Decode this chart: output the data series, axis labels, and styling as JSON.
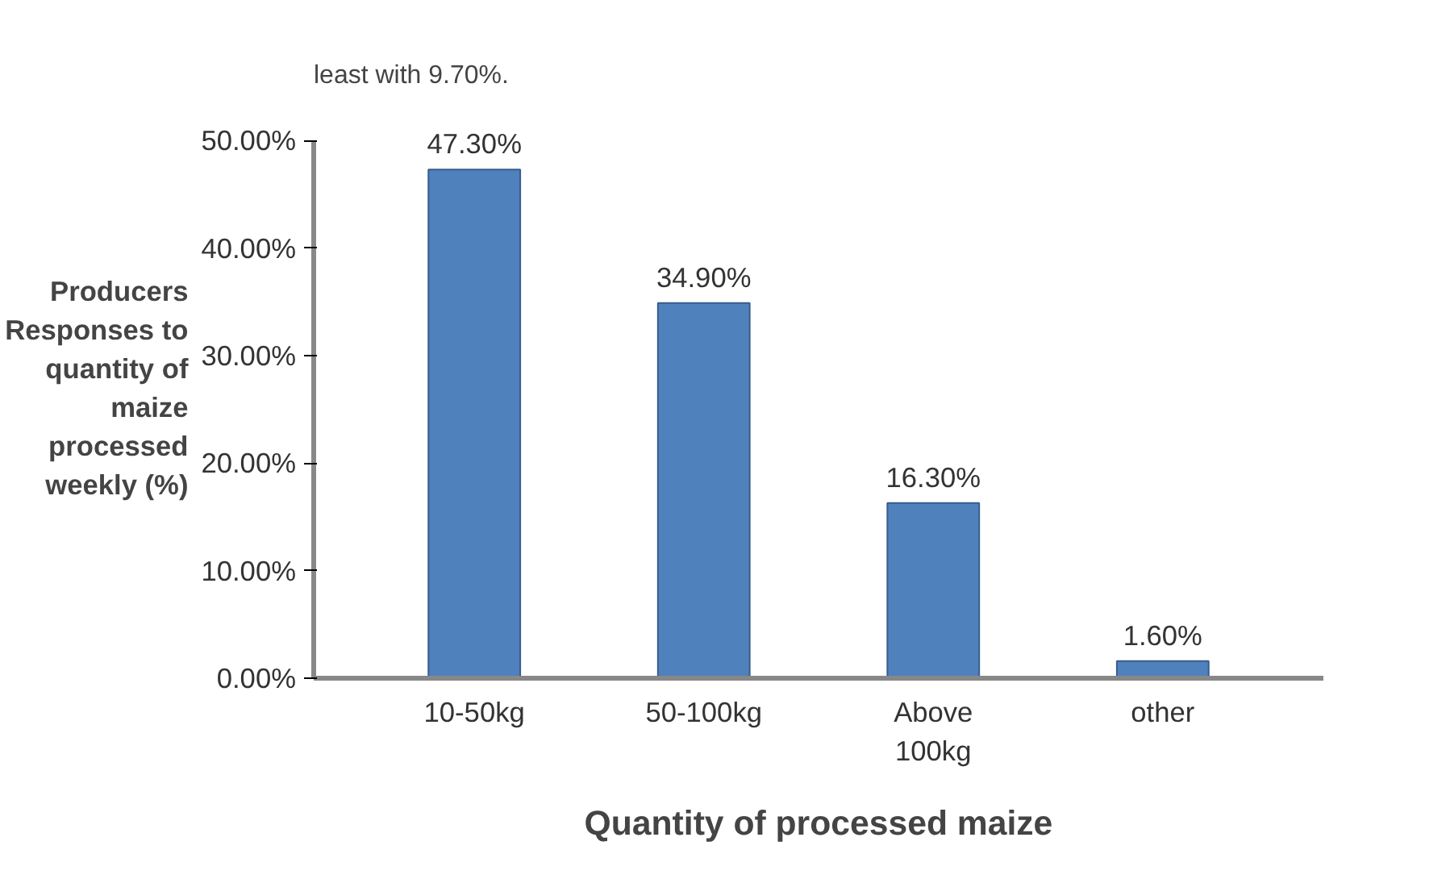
{
  "chart_data": {
    "type": "bar",
    "ylabel": "Producers Responses to quantity of maize processed weekly (%)",
    "xlabel": "Quantity of processed maize",
    "annotations": [
      "least with 9.70%."
    ],
    "categories": [
      "10-50kg",
      "50-100kg",
      "Above 100kg",
      "other"
    ],
    "values": [
      47.3,
      34.9,
      16.3,
      1.6
    ],
    "value_labels": [
      "47.30%",
      "34.90%",
      "16.30%",
      "1.60%"
    ],
    "color": "#4f81bd",
    "ylim": [
      0,
      50
    ],
    "yticks": [
      {
        "value": 0,
        "label": "0.00%"
      },
      {
        "value": 10,
        "label": "10.00%"
      },
      {
        "value": 20,
        "label": "20.00%"
      },
      {
        "value": 30,
        "label": "30.00%"
      },
      {
        "value": 40,
        "label": "40.00%"
      },
      {
        "value": 50,
        "label": "50.00%"
      }
    ],
    "grid": false
  }
}
